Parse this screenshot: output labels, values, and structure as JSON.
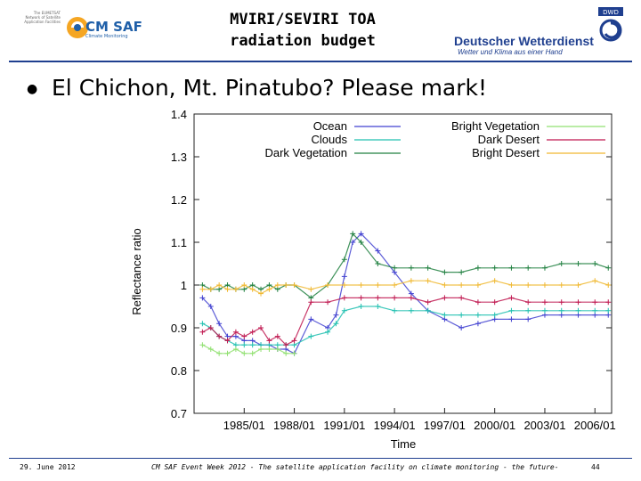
{
  "header": {
    "title_line1": "MVIRI/SEVIRI TOA",
    "title_line2": "radiation budget",
    "left_logo": {
      "name": "CM SAF",
      "subtitle": "Climate Monitoring",
      "small_text": "The EUMETSAT Network of Satellite Application Facilities",
      "color": "#1f5fa8",
      "accent": "#f5a623"
    },
    "right_logo": {
      "name": "Deutscher Wetterdienst",
      "subtitle": "Wetter und Klima aus einer Hand",
      "badge": "DWD",
      "color": "#1f3f8f"
    }
  },
  "bullet_text": "El Chichon, Mt. Pinatubo? Please mark!",
  "footer": {
    "date": "29. June 2012",
    "event": "CM SAF Event Week 2012 - The satellite application facility on climate monitoring - the future-",
    "page": "44"
  },
  "chart_data": {
    "type": "scatter",
    "title": "",
    "xlabel": "Time",
    "ylabel": "Reflectance ratio",
    "xlim": [
      1982.0,
      2007.0
    ],
    "ylim": [
      0.7,
      1.4
    ],
    "x_ticks": [
      "1985/01",
      "1988/01",
      "1991/01",
      "1994/01",
      "1997/01",
      "2000/01",
      "2003/01",
      "2006/01"
    ],
    "x_tick_values": [
      1985.0,
      1988.0,
      1991.0,
      1994.0,
      1997.0,
      2000.0,
      2003.0,
      2006.0
    ],
    "y_ticks": [
      0.7,
      0.8,
      0.9,
      1,
      1.1,
      1.2,
      1.3,
      1.4
    ],
    "legend_position": "top",
    "grid": false,
    "series": [
      {
        "name": "Ocean",
        "color": "#4040d0",
        "x": [
          1982.5,
          1983.0,
          1983.5,
          1984.0,
          1984.5,
          1985.0,
          1985.5,
          1986.0,
          1986.5,
          1987.0,
          1987.5,
          1988.0,
          1989.0,
          1990.0,
          1990.5,
          1991.0,
          1991.5,
          1992.0,
          1993.0,
          1994.0,
          1995.0,
          1996.0,
          1997.0,
          1998.0,
          1999.0,
          2000.0,
          2001.0,
          2002.0,
          2003.0,
          2004.0,
          2005.0,
          2006.0,
          2006.8
        ],
        "y": [
          0.97,
          0.95,
          0.91,
          0.88,
          0.88,
          0.87,
          0.87,
          0.86,
          0.86,
          0.85,
          0.85,
          0.84,
          0.92,
          0.9,
          0.93,
          1.02,
          1.1,
          1.12,
          1.08,
          1.03,
          0.98,
          0.94,
          0.92,
          0.9,
          0.91,
          0.92,
          0.92,
          0.92,
          0.93,
          0.93,
          0.93,
          0.93,
          0.93
        ]
      },
      {
        "name": "Clouds",
        "color": "#20c0b0",
        "x": [
          1982.5,
          1983.0,
          1983.5,
          1984.0,
          1984.5,
          1985.0,
          1985.5,
          1986.0,
          1986.5,
          1987.0,
          1987.5,
          1988.0,
          1989.0,
          1990.0,
          1990.5,
          1991.0,
          1992.0,
          1993.0,
          1994.0,
          1995.0,
          1996.0,
          1997.0,
          1998.0,
          1999.0,
          2000.0,
          2001.0,
          2002.0,
          2003.0,
          2004.0,
          2005.0,
          2006.0,
          2006.8
        ],
        "y": [
          0.91,
          0.9,
          0.88,
          0.87,
          0.86,
          0.86,
          0.86,
          0.86,
          0.86,
          0.86,
          0.86,
          0.86,
          0.88,
          0.89,
          0.91,
          0.94,
          0.95,
          0.95,
          0.94,
          0.94,
          0.94,
          0.93,
          0.93,
          0.93,
          0.93,
          0.94,
          0.94,
          0.94,
          0.94,
          0.94,
          0.94,
          0.94
        ]
      },
      {
        "name": "Dark Vegetation",
        "color": "#208040",
        "x": [
          1982.5,
          1983.0,
          1983.5,
          1984.0,
          1984.5,
          1985.0,
          1985.5,
          1986.0,
          1986.5,
          1987.0,
          1987.5,
          1988.0,
          1989.0,
          1990.0,
          1991.0,
          1991.5,
          1992.0,
          1993.0,
          1994.0,
          1995.0,
          1996.0,
          1997.0,
          1998.0,
          1999.0,
          2000.0,
          2001.0,
          2002.0,
          2003.0,
          2004.0,
          2005.0,
          2006.0,
          2006.8
        ],
        "y": [
          1.0,
          0.99,
          0.99,
          1.0,
          0.99,
          0.99,
          1.0,
          0.99,
          1.0,
          0.99,
          1.0,
          1.0,
          0.97,
          1.0,
          1.06,
          1.12,
          1.1,
          1.05,
          1.04,
          1.04,
          1.04,
          1.03,
          1.03,
          1.04,
          1.04,
          1.04,
          1.04,
          1.04,
          1.05,
          1.05,
          1.05,
          1.04
        ]
      },
      {
        "name": "Bright Vegetation",
        "color": "#90e070",
        "x": [
          1982.5,
          1983.0,
          1983.5,
          1984.0,
          1984.5,
          1985.0,
          1985.5,
          1986.0,
          1986.5,
          1987.0,
          1987.5,
          1988.0
        ],
        "y": [
          0.86,
          0.85,
          0.84,
          0.84,
          0.85,
          0.84,
          0.84,
          0.85,
          0.85,
          0.85,
          0.84,
          0.84
        ]
      },
      {
        "name": "Dark Desert",
        "color": "#c01850",
        "x": [
          1982.5,
          1983.0,
          1983.5,
          1984.0,
          1984.5,
          1985.0,
          1985.5,
          1986.0,
          1986.5,
          1987.0,
          1987.5,
          1988.0,
          1989.0,
          1990.0,
          1991.0,
          1992.0,
          1993.0,
          1994.0,
          1995.0,
          1996.0,
          1997.0,
          1998.0,
          1999.0,
          2000.0,
          2001.0,
          2002.0,
          2003.0,
          2004.0,
          2005.0,
          2006.0,
          2006.8
        ],
        "y": [
          0.89,
          0.9,
          0.88,
          0.87,
          0.89,
          0.88,
          0.89,
          0.9,
          0.87,
          0.88,
          0.86,
          0.87,
          0.96,
          0.96,
          0.97,
          0.97,
          0.97,
          0.97,
          0.97,
          0.96,
          0.97,
          0.97,
          0.96,
          0.96,
          0.97,
          0.96,
          0.96,
          0.96,
          0.96,
          0.96,
          0.96
        ]
      },
      {
        "name": "Bright Desert",
        "color": "#f0b830",
        "x": [
          1982.5,
          1983.0,
          1983.5,
          1984.0,
          1984.5,
          1985.0,
          1985.5,
          1986.0,
          1986.5,
          1987.0,
          1987.5,
          1988.0,
          1989.0,
          1990.0,
          1991.0,
          1992.0,
          1993.0,
          1994.0,
          1995.0,
          1996.0,
          1997.0,
          1998.0,
          1999.0,
          2000.0,
          2001.0,
          2002.0,
          2003.0,
          2004.0,
          2005.0,
          2006.0,
          2006.8
        ],
        "y": [
          0.99,
          0.99,
          1.0,
          0.99,
          0.99,
          1.0,
          0.99,
          0.98,
          0.99,
          1.0,
          1.0,
          1.0,
          0.99,
          1.0,
          1.0,
          1.0,
          1.0,
          1.0,
          1.01,
          1.01,
          1.0,
          1.0,
          1.0,
          1.01,
          1.0,
          1.0,
          1.0,
          1.0,
          1.0,
          1.01,
          1.0
        ]
      }
    ]
  }
}
